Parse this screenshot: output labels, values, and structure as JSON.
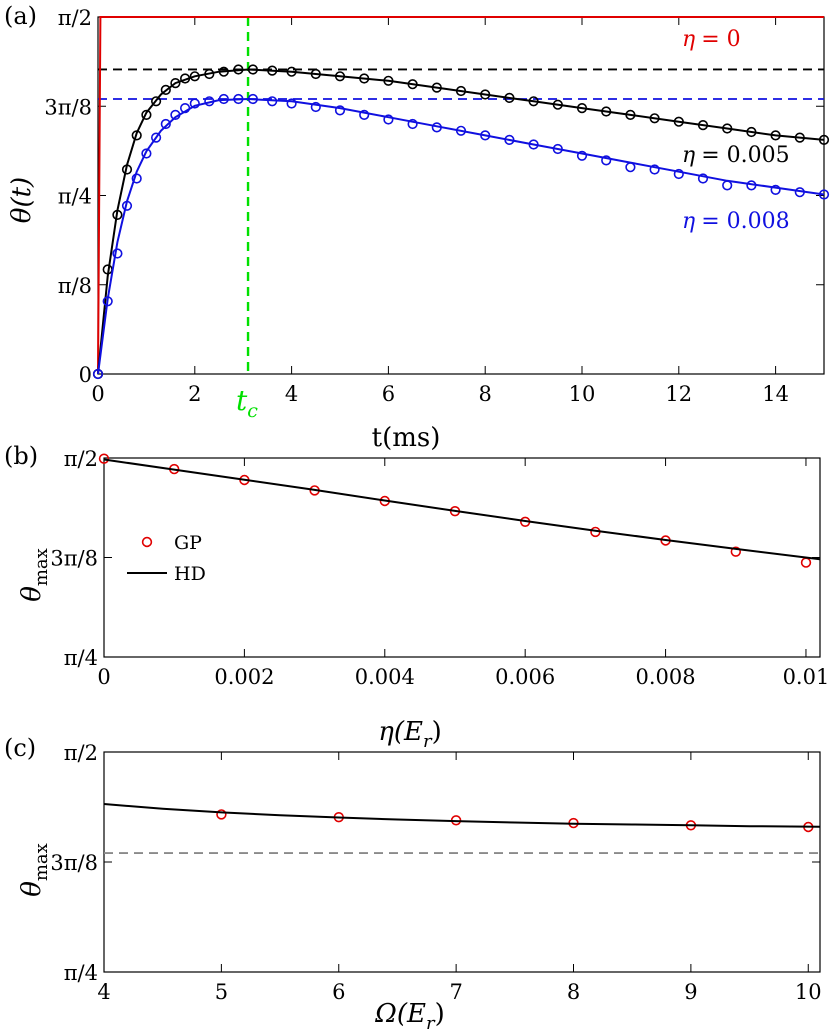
{
  "colors": {
    "red": "#e00000",
    "black": "#000000",
    "blue": "#1010e0",
    "green": "#00e000",
    "gray": "#8a8a8a"
  },
  "chart_data": [
    {
      "type": "line",
      "panel_label": "(a)",
      "xlabel": "t(ms)",
      "ylabel": "θ(t)",
      "xlim": [
        0,
        15
      ],
      "ylim": [
        0,
        1.5708
      ],
      "x_ticks": [
        0,
        2,
        4,
        6,
        8,
        10,
        12,
        14
      ],
      "x_tick_labels": [
        "0",
        "2",
        "4",
        "6",
        "8",
        "10",
        "12",
        "14"
      ],
      "y_ticks": [
        0,
        0.3927,
        0.7854,
        1.1781,
        1.5708
      ],
      "y_tick_labels": [
        "0",
        "π/8",
        "π/4",
        "3π/8",
        "π/2"
      ],
      "tc": {
        "x": 3.1,
        "label": "t",
        "sub": "c"
      },
      "hlines": [
        {
          "y": 1.34,
          "color": "black"
        },
        {
          "y": 1.21,
          "color": "blue"
        }
      ],
      "series": [
        {
          "name": "η = 0",
          "label_prefix": "η",
          "label_value": "= 0",
          "color": "red",
          "x": [
            0,
            0.05,
            15
          ],
          "y": [
            0,
            1.5708,
            1.5708
          ]
        },
        {
          "name": "η = 0.005",
          "label_prefix": "η",
          "label_value": "= 0.005",
          "color": "black",
          "x": [
            0,
            0.2,
            0.4,
            0.6,
            0.8,
            1.0,
            1.3,
            1.6,
            2.0,
            2.5,
            3.1,
            4,
            5,
            6,
            7,
            8,
            9,
            10,
            11,
            12,
            13,
            14,
            15
          ],
          "y": [
            0,
            0.43,
            0.72,
            0.92,
            1.06,
            1.15,
            1.23,
            1.28,
            1.31,
            1.33,
            1.34,
            1.33,
            1.31,
            1.29,
            1.26,
            1.23,
            1.2,
            1.17,
            1.14,
            1.11,
            1.08,
            1.05,
            1.03
          ],
          "markers_x": [
            0,
            0.2,
            0.4,
            0.6,
            0.8,
            1.0,
            1.2,
            1.4,
            1.6,
            1.8,
            2.0,
            2.3,
            2.6,
            2.9,
            3.2,
            3.6,
            4.0,
            4.5,
            5.0,
            5.5,
            6.0,
            6.5,
            7.0,
            7.5,
            8.0,
            8.5,
            9.0,
            9.5,
            10.0,
            10.5,
            11.0,
            11.5,
            12.0,
            12.5,
            13.0,
            13.5,
            14.0,
            14.5,
            15.0
          ],
          "markers_y": [
            0,
            0.46,
            0.7,
            0.9,
            1.05,
            1.14,
            1.2,
            1.25,
            1.28,
            1.3,
            1.31,
            1.32,
            1.33,
            1.34,
            1.34,
            1.335,
            1.33,
            1.32,
            1.31,
            1.3,
            1.29,
            1.275,
            1.26,
            1.245,
            1.23,
            1.215,
            1.2,
            1.185,
            1.17,
            1.155,
            1.14,
            1.125,
            1.11,
            1.095,
            1.08,
            1.065,
            1.05,
            1.04,
            1.03
          ]
        },
        {
          "name": "η = 0.008",
          "label_prefix": "η",
          "label_value": "= 0.008",
          "color": "blue",
          "x": [
            0,
            0.2,
            0.4,
            0.6,
            0.8,
            1.0,
            1.3,
            1.6,
            2.0,
            2.5,
            3.1,
            4,
            5,
            6,
            7,
            8,
            9,
            10,
            11,
            12,
            13,
            14,
            15
          ],
          "y": [
            0,
            0.33,
            0.58,
            0.76,
            0.89,
            0.98,
            1.07,
            1.13,
            1.18,
            1.205,
            1.21,
            1.2,
            1.17,
            1.13,
            1.09,
            1.05,
            1.01,
            0.97,
            0.93,
            0.89,
            0.85,
            0.82,
            0.79
          ],
          "markers_x": [
            0,
            0.2,
            0.4,
            0.6,
            0.8,
            1.0,
            1.2,
            1.4,
            1.6,
            1.8,
            2.0,
            2.3,
            2.6,
            2.9,
            3.2,
            3.6,
            4.0,
            4.5,
            5.0,
            5.5,
            6.0,
            6.5,
            7.0,
            7.5,
            8.0,
            8.5,
            9.0,
            9.5,
            10.0,
            10.5,
            11.0,
            11.5,
            12.0,
            12.5,
            13.0,
            13.5,
            14.0,
            14.5,
            15.0
          ],
          "markers_y": [
            0,
            0.32,
            0.53,
            0.74,
            0.86,
            0.97,
            1.04,
            1.1,
            1.14,
            1.17,
            1.19,
            1.2,
            1.21,
            1.21,
            1.21,
            1.2,
            1.19,
            1.175,
            1.16,
            1.14,
            1.12,
            1.1,
            1.085,
            1.07,
            1.05,
            1.03,
            1.01,
            0.99,
            0.96,
            0.94,
            0.91,
            0.9,
            0.88,
            0.86,
            0.83,
            0.83,
            0.81,
            0.8,
            0.79
          ]
        }
      ]
    },
    {
      "type": "scatter",
      "panel_label": "(b)",
      "xlabel": "η(E_r)",
      "xlabel_main": "η(E",
      "xlabel_sub": "r",
      "xlabel_tail": ")",
      "ylabel": "θ_max",
      "ylabel_main": "θ",
      "ylabel_sub": "max",
      "xlim": [
        0,
        0.0102
      ],
      "ylim": [
        0.7854,
        1.5708
      ],
      "x_ticks": [
        0,
        0.002,
        0.004,
        0.006,
        0.008,
        0.01
      ],
      "x_tick_labels": [
        "0",
        "0.002",
        "0.004",
        "0.006",
        "0.008",
        "0.01"
      ],
      "y_ticks": [
        0.7854,
        1.1781,
        1.5708
      ],
      "y_tick_labels": [
        "π/4",
        "3π/8",
        "π/2"
      ],
      "legend": {
        "position": "center-left",
        "entries": [
          "GP",
          "HD"
        ]
      },
      "series": [
        {
          "name": "GP",
          "kind": "markers",
          "color": "red",
          "x": [
            0,
            0.001,
            0.002,
            0.003,
            0.004,
            0.005,
            0.006,
            0.007,
            0.008,
            0.009,
            0.01
          ],
          "y": [
            1.568,
            1.527,
            1.484,
            1.443,
            1.401,
            1.361,
            1.319,
            1.279,
            1.245,
            1.201,
            1.158
          ]
        },
        {
          "name": "HD",
          "kind": "line",
          "color": "black",
          "x": [
            0,
            0.001,
            0.002,
            0.003,
            0.004,
            0.005,
            0.006,
            0.007,
            0.008,
            0.009,
            0.0102
          ],
          "y": [
            1.565,
            1.525,
            1.485,
            1.445,
            1.403,
            1.362,
            1.322,
            1.284,
            1.247,
            1.212,
            1.171
          ]
        }
      ]
    },
    {
      "type": "scatter",
      "panel_label": "(c)",
      "xlabel": "Ω(E_r)",
      "xlabel_main": "Ω(E",
      "xlabel_sub": "r",
      "xlabel_tail": ")",
      "ylabel": "θ_max",
      "ylabel_main": "θ",
      "ylabel_sub": "max",
      "xlim": [
        4,
        10.1
      ],
      "ylim": [
        0.7854,
        1.5708
      ],
      "x_ticks": [
        4,
        5,
        6,
        7,
        8,
        9,
        10
      ],
      "x_tick_labels": [
        "4",
        "5",
        "6",
        "7",
        "8",
        "9",
        "10"
      ],
      "y_ticks": [
        0.7854,
        1.1781,
        1.5708
      ],
      "y_tick_labels": [
        "π/4",
        "3π/8",
        "π/2"
      ],
      "hline": {
        "y": 1.21,
        "color": "gray",
        "style": "dashed"
      },
      "series": [
        {
          "name": "GP",
          "kind": "markers",
          "color": "red",
          "x": [
            5,
            6,
            7,
            8,
            9,
            10
          ],
          "y": [
            1.348,
            1.338,
            1.327,
            1.317,
            1.309,
            1.303
          ]
        },
        {
          "name": "HD",
          "kind": "line",
          "color": "black",
          "x": [
            4,
            4.5,
            5,
            5.5,
            6,
            6.5,
            7,
            7.5,
            8,
            8.5,
            9,
            9.5,
            10.1
          ],
          "y": [
            1.385,
            1.368,
            1.355,
            1.345,
            1.337,
            1.33,
            1.324,
            1.319,
            1.315,
            1.312,
            1.309,
            1.306,
            1.304
          ]
        }
      ]
    }
  ]
}
